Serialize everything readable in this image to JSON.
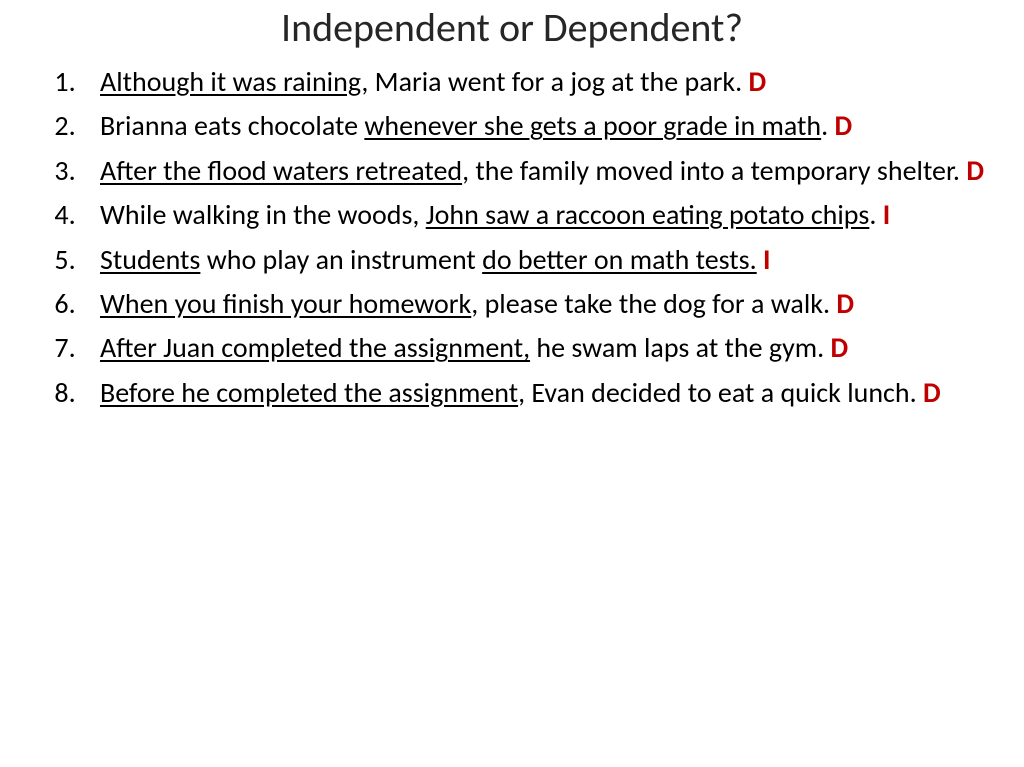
{
  "title": "Independent or Dependent?",
  "text_color": "#000000",
  "answer_color": "#c00000",
  "background_color": "#ffffff",
  "title_fontsize": 40,
  "body_fontsize": 28,
  "items": [
    {
      "u1": "Although it was raining",
      "t1": ", Maria went for a jog at the park. ",
      "ans": "D"
    },
    {
      "t0": "Brianna eats chocolate ",
      "u1": "whenever she gets a poor grade in math",
      "t1": ".   ",
      "ans": "D"
    },
    {
      "u1": "After the flood waters retreated",
      "t1": ", the family moved into a temporary shelter.   ",
      "ans": "D"
    },
    {
      "t0": "While walking in the woods, ",
      "u1": "John saw a raccoon eating potato chips",
      "t1": ".    ",
      "ans": "I"
    },
    {
      "u1": "Students",
      "t1": " who play an instrument  ",
      "u2": "do better on math tests.",
      "t2": "   ",
      "ans": "I"
    },
    {
      "u1": "When you finish your homework",
      "t1": ", please take the dog for a walk. ",
      "ans": "D"
    },
    {
      "u1": "After Juan completed the assignment,",
      "t1": " he swam laps at the gym.   ",
      "ans": "D"
    },
    {
      "u1": "Before he completed the assignment",
      "t1": ", Evan decided to eat a quick lunch.   ",
      "ans": "D"
    }
  ]
}
